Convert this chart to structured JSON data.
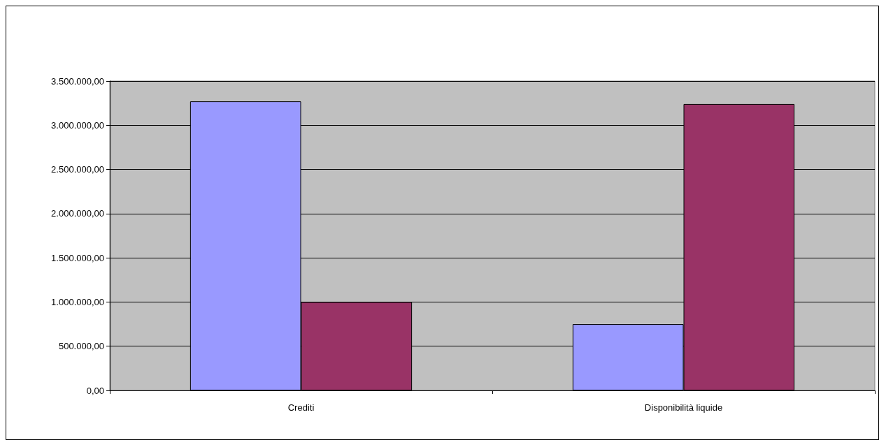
{
  "chart_data": {
    "type": "bar",
    "categories": [
      "Crediti",
      "Disponibilità liquide"
    ],
    "series": [
      {
        "color": "#9999ff",
        "values": [
          3270000,
          750000
        ]
      },
      {
        "color": "#993366",
        "values": [
          1000000,
          3240000
        ]
      }
    ],
    "ylim": [
      0,
      3500000
    ],
    "yticks": [
      {
        "value": 0,
        "label": "0,00"
      },
      {
        "value": 500000,
        "label": "500.000,00"
      },
      {
        "value": 1000000,
        "label": "1.000.000,00"
      },
      {
        "value": 1500000,
        "label": "1.500.000,00"
      },
      {
        "value": 2000000,
        "label": "2.000.000,00"
      },
      {
        "value": 2500000,
        "label": "2.500.000,00"
      },
      {
        "value": 3000000,
        "label": "3.000.000,00"
      },
      {
        "value": 3500000,
        "label": "3.500.000,00"
      }
    ],
    "grid": "y"
  }
}
